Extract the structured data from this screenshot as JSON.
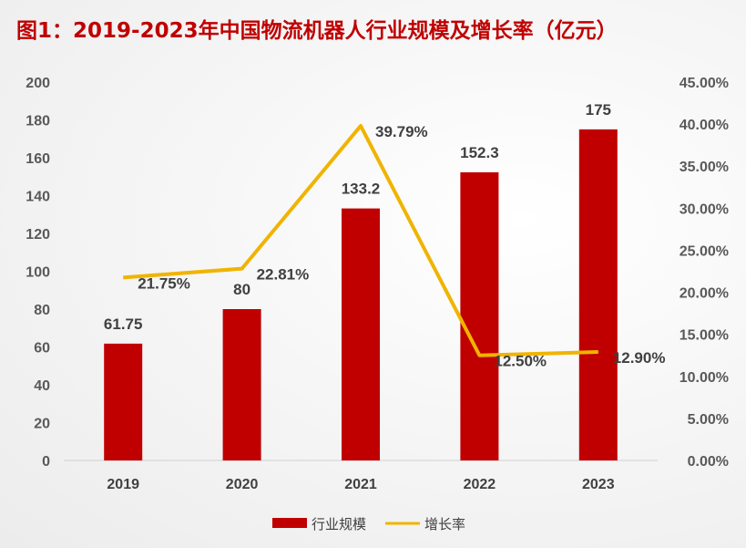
{
  "title": "图1：2019-2023年中国物流机器人行业规模及增长率（亿元）",
  "colors": {
    "bar": "#c00000",
    "line": "#f0b400",
    "title": "#c00000"
  },
  "chart_data": {
    "type": "bar",
    "title": "图1：2019-2023年中国物流机器人行业规模及增长率（亿元）",
    "categories": [
      "2019",
      "2020",
      "2021",
      "2022",
      "2023"
    ],
    "series": [
      {
        "name": "行业规模",
        "type": "bar",
        "axis": "left",
        "values": [
          61.75,
          80,
          133.2,
          152.3,
          175
        ],
        "labels": [
          "61.75",
          "80",
          "133.2",
          "152.3",
          "175"
        ]
      },
      {
        "name": "增长率",
        "type": "line",
        "axis": "right",
        "values": [
          21.75,
          22.81,
          39.79,
          12.5,
          12.9
        ],
        "labels": [
          "21.75%",
          "22.81%",
          "39.79%",
          "12.50%",
          "12.90%"
        ]
      }
    ],
    "ylim_left": [
      0,
      200
    ],
    "yticks_left": [
      "0",
      "20",
      "40",
      "60",
      "80",
      "100",
      "120",
      "140",
      "160",
      "180",
      "200"
    ],
    "ylim_right": [
      0,
      45
    ],
    "yticks_right": [
      "0.00%",
      "5.00%",
      "10.00%",
      "15.00%",
      "20.00%",
      "25.00%",
      "30.00%",
      "35.00%",
      "40.00%",
      "45.00%"
    ],
    "grid": false,
    "legend": "bottom"
  }
}
